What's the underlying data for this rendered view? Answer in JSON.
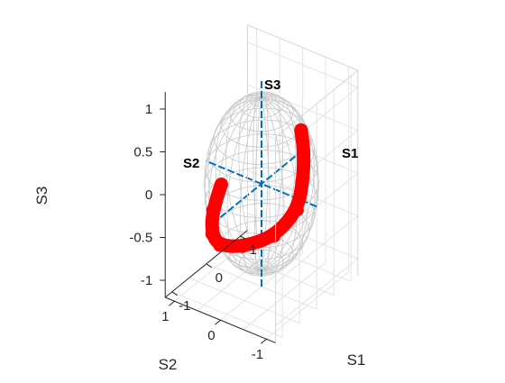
{
  "chart_data": {
    "type": "scatter",
    "subtype": "3d-poincare-sphere",
    "title": "",
    "xlabel": "S1",
    "ylabel": "S2",
    "zlabel": "S3",
    "xlim": [
      -1.2,
      1.2
    ],
    "ylim": [
      -1.2,
      1.2
    ],
    "zlim": [
      -1.2,
      1.2
    ],
    "x_ticks": [
      "-1",
      "0",
      "1"
    ],
    "y_ticks": [
      "1",
      "0",
      "-1"
    ],
    "z_ticks": [
      "1",
      "0.5",
      "0",
      "-0.5",
      "-1"
    ],
    "axis_line_labels": [
      "S1",
      "S2",
      "S3"
    ],
    "grid": true,
    "sphere": {
      "radius": 1,
      "color": "#c8c8c8"
    },
    "axis_line_color": "#0072BD",
    "trajectory_color": "#ff0000",
    "series": [
      {
        "points": [
          [
            -0.1,
            0.8,
            -0.15
          ],
          [
            -0.6,
            0.62,
            -0.25
          ],
          [
            -0.62,
            0.62,
            -0.52
          ],
          [
            -0.35,
            0.65,
            -0.75
          ],
          [
            0.05,
            0.45,
            -0.85
          ],
          [
            0.5,
            0.1,
            -0.8
          ],
          [
            0.85,
            -0.15,
            -0.55
          ],
          [
            0.95,
            -0.2,
            -0.2
          ],
          [
            0.9,
            -0.25,
            0.15
          ],
          [
            0.75,
            -0.3,
            0.45
          ]
        ]
      }
    ]
  }
}
